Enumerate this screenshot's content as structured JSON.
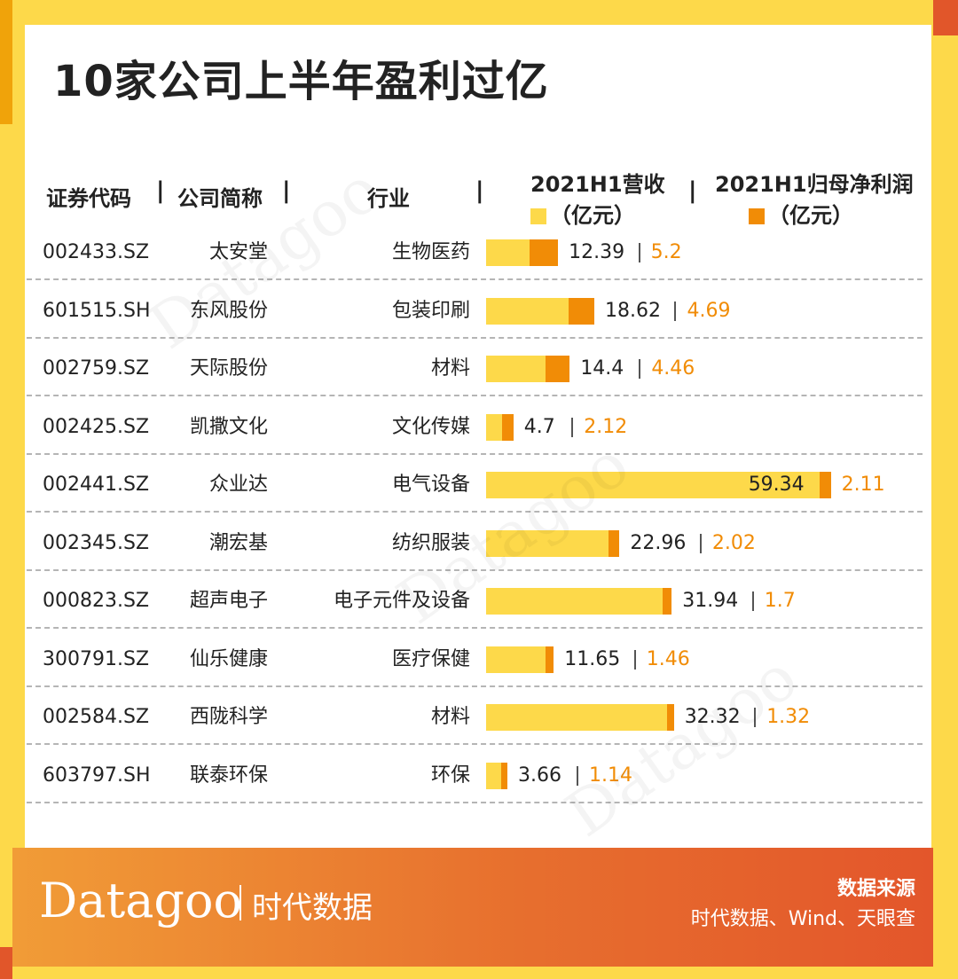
{
  "title": "10家公司上半年盈利过亿",
  "headers": {
    "code": "证券代码",
    "name": "公司简称",
    "industry": "行业",
    "revenue_line1": "2021H1营收",
    "revenue_line2": "（亿元）",
    "profit_line1": "2021H1归母净利润",
    "profit_line2": "（亿元）",
    "separator": "|"
  },
  "colors": {
    "revenue": "#fdd94a",
    "profit": "#f18c06"
  },
  "chart_data": {
    "type": "bar",
    "columns": [
      "证券代码",
      "公司简称",
      "行业",
      "2021H1营收（亿元）",
      "2021H1归母净利润（亿元）"
    ],
    "rows": [
      {
        "code": "002433.SZ",
        "name": "太安堂",
        "industry": "生物医药",
        "revenue": "12.39",
        "profit": "5.2"
      },
      {
        "code": "601515.SH",
        "name": "东风股份",
        "industry": "包装印刷",
        "revenue": "18.62",
        "profit": "4.69"
      },
      {
        "code": "002759.SZ",
        "name": "天际股份",
        "industry": "材料",
        "revenue": "14.4",
        "profit": "4.46"
      },
      {
        "code": "002425.SZ",
        "name": "凯撒文化",
        "industry": "文化传媒",
        "revenue": "4.7",
        "profit": "2.12"
      },
      {
        "code": "002441.SZ",
        "name": "众业达",
        "industry": "电气设备",
        "revenue": "59.34",
        "profit": "2.11"
      },
      {
        "code": "002345.SZ",
        "name": "潮宏基",
        "industry": "纺织服装",
        "revenue": "22.96",
        "profit": "2.02"
      },
      {
        "code": "000823.SZ",
        "name": "超声电子",
        "industry": "电子元件及设备",
        "revenue": "31.94",
        "profit": "1.7"
      },
      {
        "code": "300791.SZ",
        "name": "仙乐健康",
        "industry": "医疗保健",
        "revenue": "11.65",
        "profit": "1.46"
      },
      {
        "code": "002584.SZ",
        "name": "西陇科学",
        "industry": "材料",
        "revenue": "32.32",
        "profit": "1.32"
      },
      {
        "code": "603797.SH",
        "name": "联泰环保",
        "industry": "环保",
        "revenue": "3.66",
        "profit": "1.14"
      }
    ]
  },
  "footer": {
    "brand": "Datagoo",
    "brand_cn": "时代数据",
    "source_label": "数据来源",
    "source_value": "时代数据、Wind、天眼查"
  }
}
